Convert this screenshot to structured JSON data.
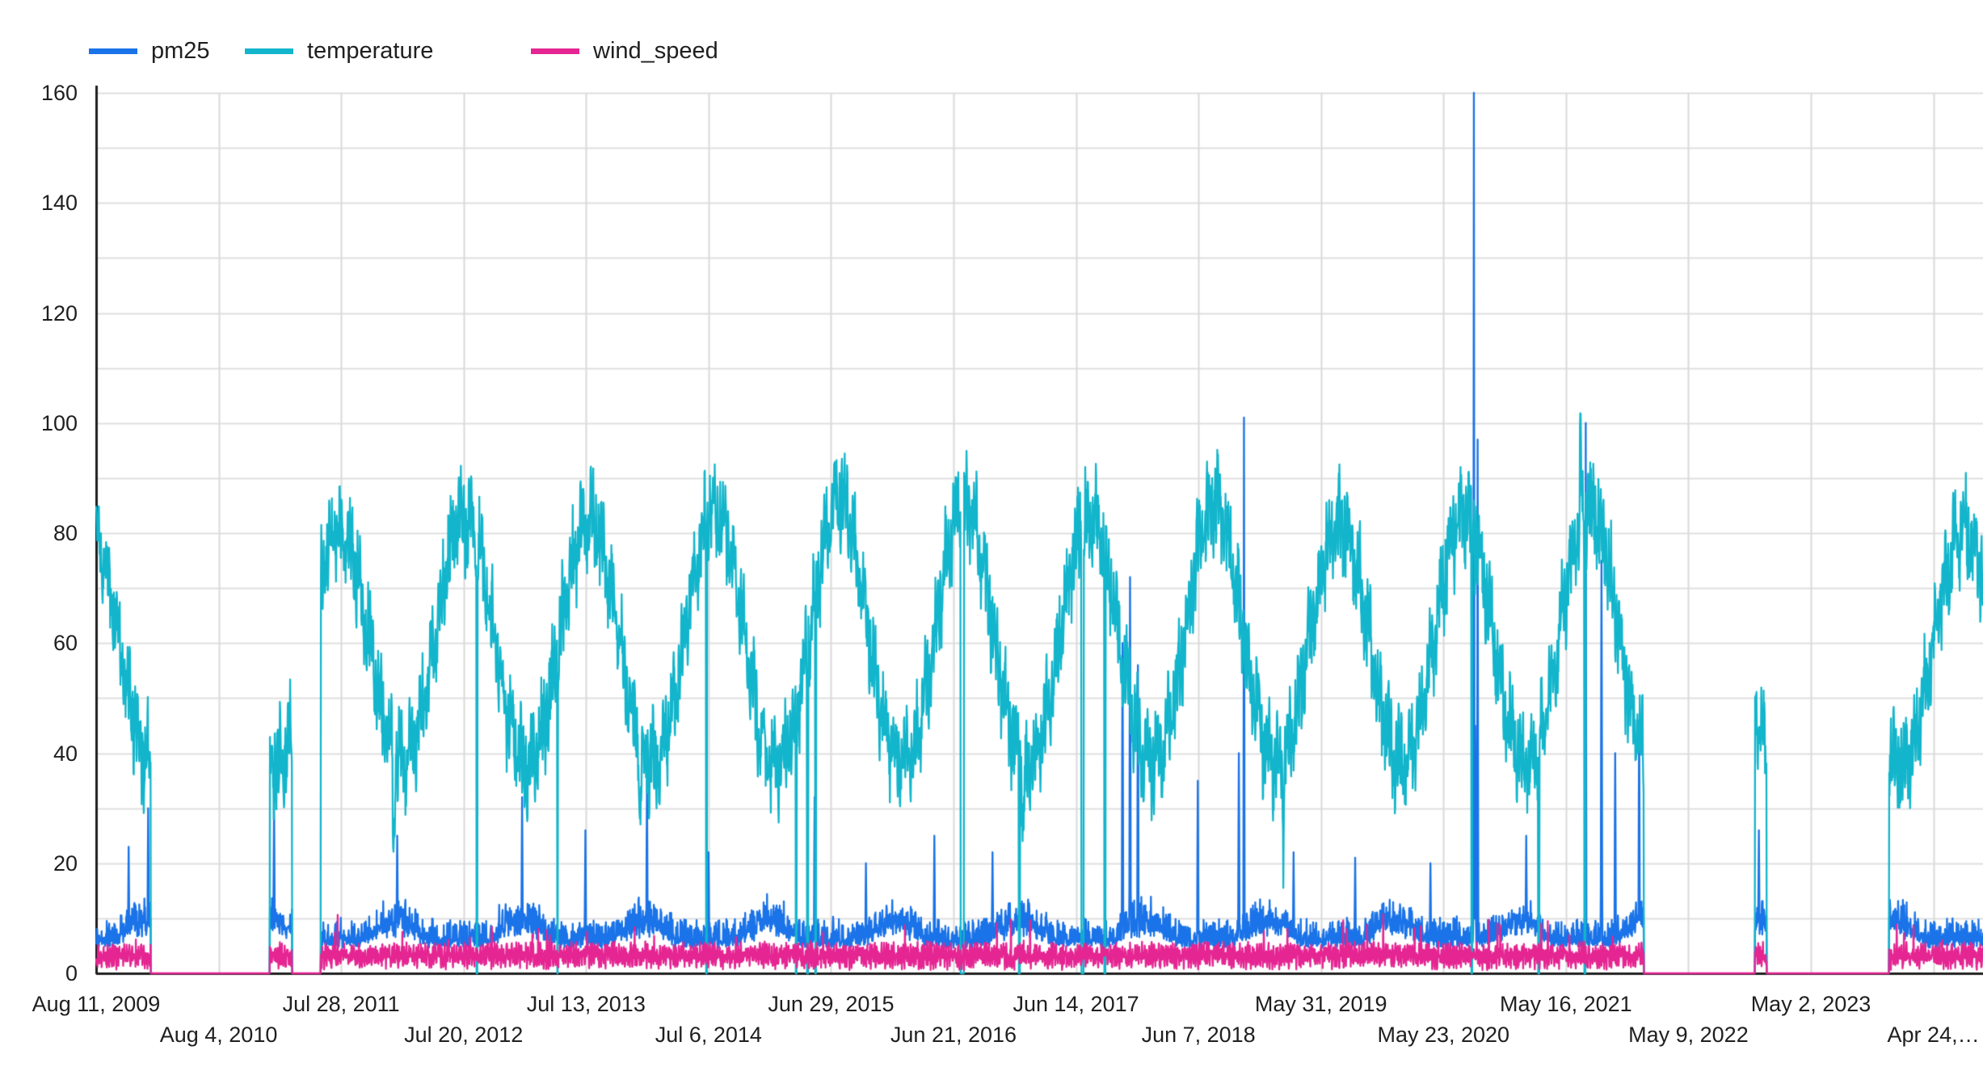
{
  "page": {
    "background": "#ffffff"
  },
  "legend": {
    "items": [
      {
        "label": "pm25",
        "color": "#1a73e8"
      },
      {
        "label": "temperature",
        "color": "#12b5cb"
      },
      {
        "label": "wind_speed",
        "color": "#e52592"
      }
    ]
  },
  "y_axis": {
    "min": 0,
    "max": 160,
    "label_step": 20,
    "gridline_step": 10,
    "tick_labels": [
      "0",
      "20",
      "40",
      "60",
      "80",
      "100",
      "120",
      "140",
      "160"
    ]
  },
  "x_axis": {
    "tick_interval_days": 358,
    "labels": [
      {
        "text": "Aug 11, 2009",
        "row": 1
      },
      {
        "text": "Aug 4, 2010",
        "row": 2
      },
      {
        "text": "Jul 28, 2011",
        "row": 1
      },
      {
        "text": "Jul 20, 2012",
        "row": 2
      },
      {
        "text": "Jul 13, 2013",
        "row": 1
      },
      {
        "text": "Jul 6, 2014",
        "row": 2
      },
      {
        "text": "Jun 29, 2015",
        "row": 1
      },
      {
        "text": "Jun 21, 2016",
        "row": 2
      },
      {
        "text": "Jun 14, 2017",
        "row": 1
      },
      {
        "text": "Jun 7, 2018",
        "row": 2
      },
      {
        "text": "May 31, 2019",
        "row": 1
      },
      {
        "text": "May 23, 2020",
        "row": 2
      },
      {
        "text": "May 16, 2021",
        "row": 1
      },
      {
        "text": "May 9, 2022",
        "row": 2
      },
      {
        "text": "May 2, 2023",
        "row": 1
      },
      {
        "text": "Apr 24,…",
        "row": 2
      }
    ]
  },
  "colors": {
    "grid": "#e0e0e0",
    "vgrid": "#dadada",
    "axis": "#1f1f1f",
    "text": "#1f1f1f",
    "background": "#ffffff"
  },
  "chart_data": {
    "type": "line",
    "title": "",
    "xlabel": "",
    "ylabel": "",
    "x_start": "Aug 11, 2009",
    "x_end_approx": "mid 2024 (right edge past Apr 24 label)",
    "x_unit": "days since Aug 11, 2009",
    "ylim": [
      0,
      160
    ],
    "legend_position": "top-left",
    "grid": true,
    "series": [
      {
        "name": "pm25",
        "color": "#1a73e8",
        "typical_range": [
          3,
          15
        ],
        "winter_bump": 3.2,
        "spikes": [
          [
            95,
            23
          ],
          [
            152,
            30
          ],
          [
            520,
            31
          ],
          [
            880,
            25
          ],
          [
            1245,
            32
          ],
          [
            1430,
            26
          ],
          [
            1610,
            35
          ],
          [
            1790,
            22
          ],
          [
            2100,
            32
          ],
          [
            2250,
            20
          ],
          [
            2450,
            25
          ],
          [
            2620,
            22
          ],
          [
            3000,
            60
          ],
          [
            3022,
            72
          ],
          [
            3045,
            56
          ],
          [
            3220,
            35
          ],
          [
            3340,
            40
          ],
          [
            3355,
            101
          ],
          [
            3500,
            22
          ],
          [
            3680,
            21
          ],
          [
            3900,
            20
          ],
          [
            4027,
            160
          ],
          [
            4031,
            45
          ],
          [
            4038,
            97
          ],
          [
            4180,
            25
          ],
          [
            4354,
            100
          ],
          [
            4400,
            75
          ],
          [
            4440,
            40
          ],
          [
            4510,
            46
          ],
          [
            4860,
            26
          ],
          [
            5225,
            28
          ]
        ],
        "max_value": 160,
        "max_value_note": "tall spike just over the 160 gridline, ~Sep 2020"
      },
      {
        "name": "temperature",
        "color": "#12b5cb",
        "seasonal_mean": 59,
        "seasonal_amplitude": 21,
        "summer_peak_boost": {
          "2012": 3,
          "2013": 2,
          "2014": 4,
          "2015": 6,
          "2016": 5,
          "2017": 3,
          "2018": 5,
          "2019": 2,
          "2020": 3,
          "2021": 5
        },
        "winter_dips": [
          [
            870,
            17
          ],
          [
            1590,
            16
          ],
          [
            2710,
            14
          ],
          [
            3470,
            13
          ]
        ],
        "heat_event_day": 4339,
        "heat_event_peak": 105,
        "zero_glitch_runs": [
          [
            1112,
            1114
          ],
          [
            1348,
            1349
          ],
          [
            1783,
            1785
          ],
          [
            2045,
            2047
          ],
          [
            2078,
            2081
          ],
          [
            2102,
            2104
          ],
          [
            2527,
            2536
          ],
          [
            2697,
            2700
          ],
          [
            2880,
            2886
          ],
          [
            2947,
            2950
          ],
          [
            4020,
            4022
          ],
          [
            4215,
            4218
          ],
          [
            4350,
            4353
          ]
        ],
        "typical_summer_peak": [
          80,
          93
        ],
        "typical_winter_low": [
          20,
          45
        ]
      },
      {
        "name": "wind_speed",
        "color": "#e52592",
        "typical_range": [
          1,
          7
        ],
        "baseline": 3.2,
        "note": "flat at 0 across data gaps"
      }
    ],
    "gaps": [
      [
        160,
        507
      ],
      [
        573,
        656
      ],
      [
        4524,
        4848
      ],
      [
        4883,
        5240
      ]
    ],
    "gaps_note": "series drop to 0 at gap edges; pm25/temperature absent inside gaps; wind_speed reads 0 inside gaps"
  }
}
